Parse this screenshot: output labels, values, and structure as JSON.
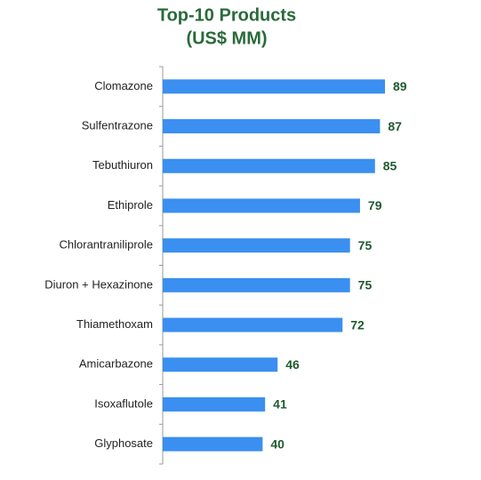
{
  "chart_data": {
    "type": "bar",
    "orientation": "horizontal",
    "title": "Top-10 Products",
    "subtitle": "(US$ MM)",
    "categories": [
      "Clomazone",
      "Sulfentrazone",
      "Tebuthiuron",
      "Ethiprole",
      "Chlorantraniliprole",
      "Diuron + Hexazinone",
      "Thiamethoxam",
      "Amicarbazone",
      "Isoxaflutole",
      "Glyphosate"
    ],
    "values": [
      89,
      87,
      85,
      79,
      75,
      75,
      72,
      46,
      41,
      40
    ],
    "color": "#3a8ff0"
  }
}
